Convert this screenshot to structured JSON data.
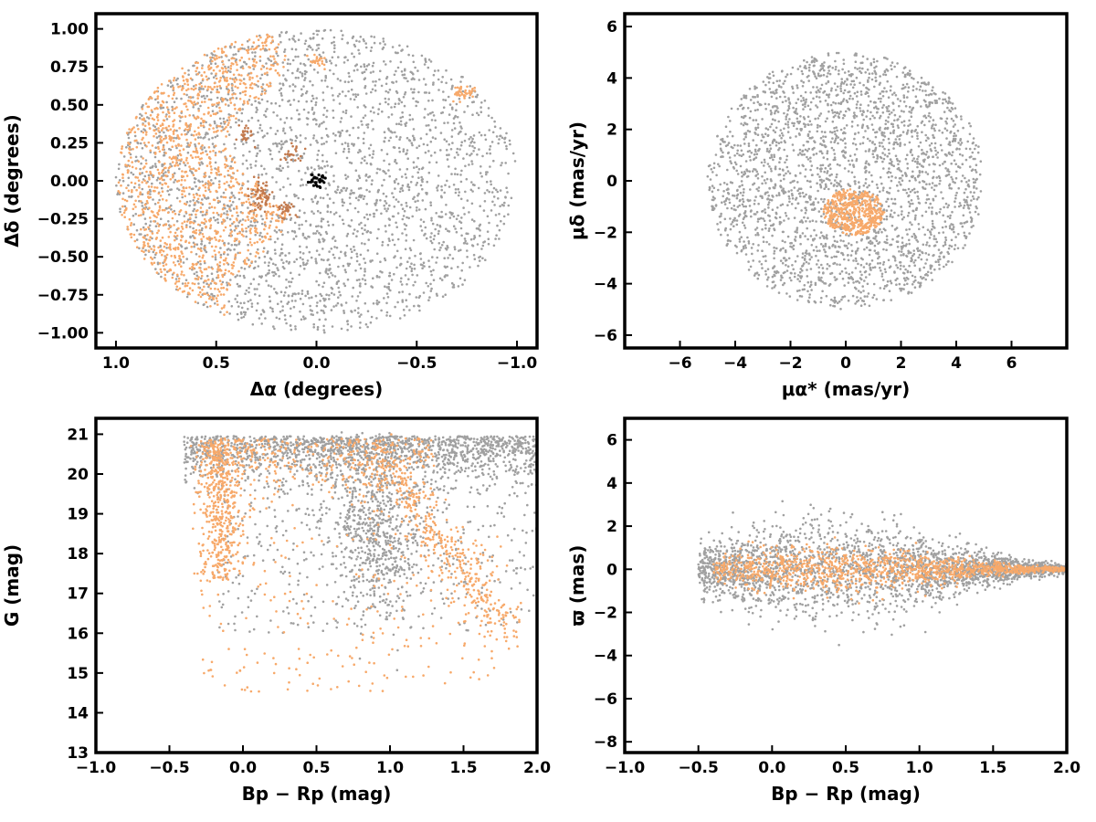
{
  "colors": {
    "field": "#a0a0a0",
    "members": "#f7a96a",
    "members_dark": "#c27a4e",
    "core": "#000000",
    "frame": "#000000"
  },
  "chart_data": [
    {
      "type": "scatter",
      "title": "",
      "xlabel": "Δα (degrees)",
      "ylabel": "Δδ (degrees)",
      "xlim": [
        1.1,
        -1.1
      ],
      "ylim": [
        -1.1,
        1.1
      ],
      "x_inverted": true,
      "xticks": [
        1.0,
        0.5,
        0.0,
        -0.5,
        -1.0
      ],
      "xtick_labels": [
        "1.0",
        "0.5",
        "0.0",
        "−0.5",
        "−1.0"
      ],
      "yticks": [
        1.0,
        0.75,
        0.5,
        0.25,
        0.0,
        -0.25,
        -0.5,
        -0.75,
        -1.0
      ],
      "ytick_labels": [
        "1.00",
        "0.75",
        "0.50",
        "0.25",
        "0.00",
        "−0.25",
        "−0.50",
        "−0.75",
        "−1.00"
      ],
      "grid": false,
      "series": [
        {
          "role": "field",
          "shape": "disk",
          "center": [
            0.0,
            0.0
          ],
          "radius": 1.0,
          "n": 2600
        },
        {
          "role": "members",
          "shape": "region",
          "ra_from": 1.0,
          "ra_to": 0.3,
          "n": 1300,
          "clumps": [
            {
              "center": [
                -0.73,
                0.58
              ],
              "radius": 0.04,
              "n": 40
            },
            {
              "center": [
                0.0,
                0.78
              ],
              "radius": 0.04,
              "n": 25
            }
          ]
        },
        {
          "role": "members_dark",
          "shape": "clumps",
          "clumps": [
            {
              "center": [
                0.28,
                -0.1
              ],
              "radius": 0.06,
              "n": 60
            },
            {
              "center": [
                0.15,
                -0.18
              ],
              "radius": 0.04,
              "n": 30
            },
            {
              "center": [
                0.12,
                0.18
              ],
              "radius": 0.04,
              "n": 25
            },
            {
              "center": [
                0.35,
                0.3
              ],
              "radius": 0.04,
              "n": 25
            }
          ]
        },
        {
          "role": "core",
          "shape": "disk",
          "center": [
            0.0,
            0.0
          ],
          "radius": 0.05,
          "n": 30
        }
      ]
    },
    {
      "type": "scatter",
      "title": "",
      "xlabel": "μα* (mas/yr)",
      "ylabel": "μδ (mas/yr)",
      "xlim": [
        -8,
        8
      ],
      "ylim": [
        -6.5,
        6.5
      ],
      "xticks": [
        -6,
        -4,
        -2,
        0,
        2,
        4,
        6
      ],
      "xtick_labels": [
        "−6",
        "−4",
        "−2",
        "0",
        "2",
        "4",
        "6"
      ],
      "yticks": [
        6,
        4,
        2,
        0,
        -2,
        -4,
        -6
      ],
      "ytick_labels": [
        "6",
        "4",
        "2",
        "0",
        "−2",
        "−4",
        "−6"
      ],
      "grid": false,
      "series": [
        {
          "role": "field",
          "shape": "disk",
          "center": [
            0.0,
            0.0
          ],
          "radius": 5.0,
          "n": 2600
        },
        {
          "role": "members",
          "shape": "ellipse",
          "center": [
            0.3,
            -1.2
          ],
          "radii": [
            1.1,
            0.9
          ],
          "n": 500
        }
      ]
    },
    {
      "type": "scatter",
      "title": "",
      "xlabel": "Bp − Rp (mag)",
      "ylabel": "G (mag)",
      "xlim": [
        -1.0,
        2.0
      ],
      "ylim": [
        13.0,
        21.4
      ],
      "y_inverted": false,
      "xticks": [
        -1.0,
        -0.5,
        0.0,
        0.5,
        1.0,
        1.5,
        2.0
      ],
      "xtick_labels": [
        "−1.0",
        "−0.5",
        "0.0",
        "0.5",
        "1.0",
        "1.5",
        "2.0"
      ],
      "yticks": [
        21,
        20,
        19,
        18,
        17,
        16,
        15,
        14,
        13
      ],
      "ytick_labels": [
        "21",
        "20",
        "19",
        "18",
        "17",
        "16",
        "15",
        "14",
        "13"
      ],
      "grid": false,
      "series": [
        {
          "role": "field",
          "shape": "cmd",
          "n": 2600
        },
        {
          "role": "members",
          "shape": "cmd",
          "n": 1500
        }
      ]
    },
    {
      "type": "scatter",
      "title": "",
      "xlabel": "Bp − Rp (mag)",
      "ylabel": "ϖ (mas)",
      "xlim": [
        -1.0,
        2.0
      ],
      "ylim": [
        -8.5,
        7.0
      ],
      "xticks": [
        -1.0,
        -0.5,
        0.0,
        0.5,
        1.0,
        1.5,
        2.0
      ],
      "xtick_labels": [
        "−1.0",
        "−0.5",
        "0.0",
        "0.5",
        "1.0",
        "1.5",
        "2.0"
      ],
      "yticks": [
        6,
        4,
        2,
        0,
        -2,
        -4,
        -6,
        -8
      ],
      "ytick_labels": [
        "6",
        "4",
        "2",
        "0",
        "−2",
        "−4",
        "−6",
        "−8"
      ],
      "grid": false,
      "series": [
        {
          "role": "field",
          "shape": "parallax",
          "n": 2600
        },
        {
          "role": "members",
          "shape": "parallax",
          "n": 1200
        }
      ]
    }
  ]
}
